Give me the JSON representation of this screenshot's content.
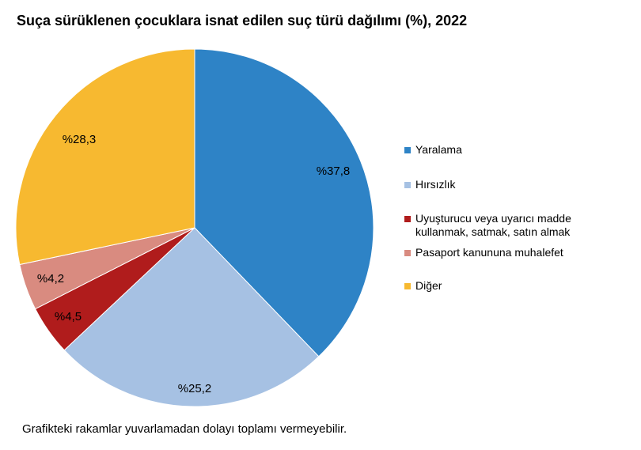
{
  "chart_data": {
    "type": "pie",
    "title": "Suça sürüklenen çocuklara isnat edilen suç türü dağılımı (%), 2022",
    "slices": [
      {
        "name": "Yaralama",
        "value": 37.8,
        "label": "%37,8",
        "color": "#2E83C6"
      },
      {
        "name": "Hırsızlık",
        "value": 25.2,
        "label": "%25,2",
        "color": "#A6C1E3"
      },
      {
        "name": "Uyuşturucu veya uyarıcı madde kullanmak, satmak, satın almak",
        "legend_lines": [
          "Uyuşturucu veya uyarıcı madde",
          "kullanmak, satmak, satın almak"
        ],
        "value": 4.5,
        "label": "%4,5",
        "color": "#B01C1C"
      },
      {
        "name": "Pasaport kanununa muhalefet",
        "value": 4.2,
        "label": "%4,2",
        "color": "#D98B80"
      },
      {
        "name": "Diğer",
        "value": 28.3,
        "label": "%28,3",
        "color": "#F7B930"
      }
    ],
    "start": "12 o'clock",
    "direction": "clockwise",
    "legend_position": "right"
  },
  "footnote": "Grafikteki rakamlar yuvarlamadan dolayı toplamı vermeyebilir."
}
